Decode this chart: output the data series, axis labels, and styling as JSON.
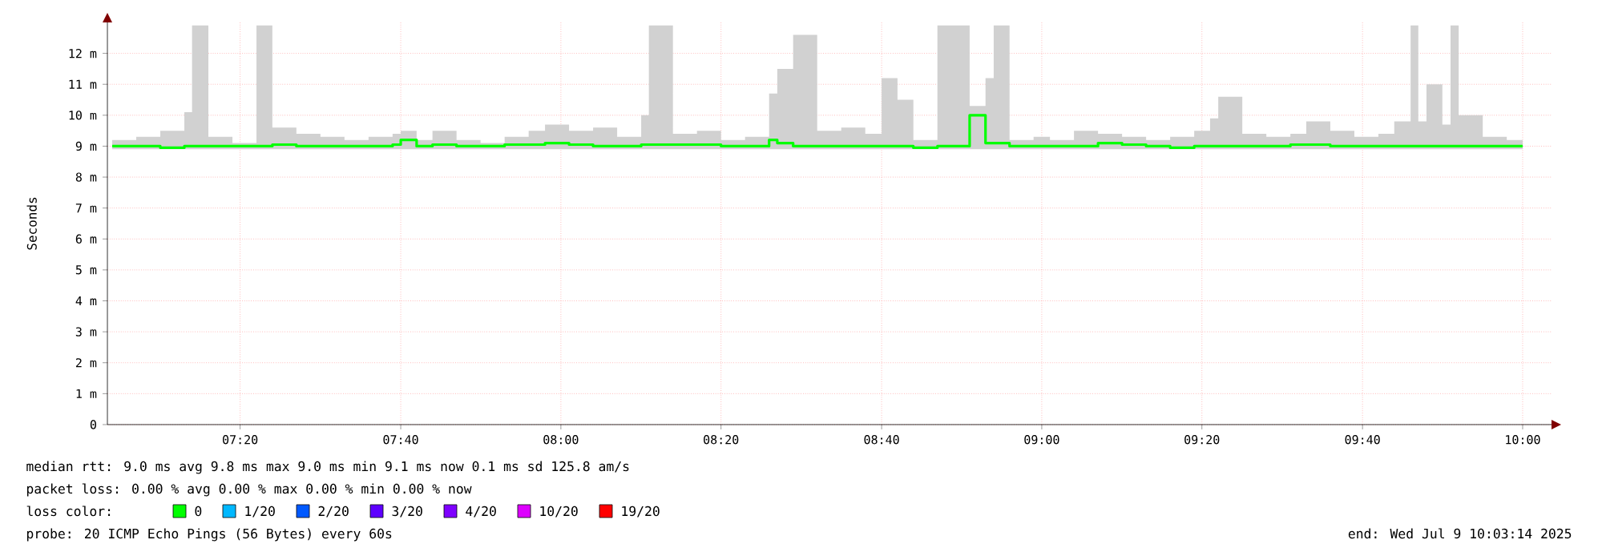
{
  "chart_data": {
    "type": "step",
    "ylabel": "Seconds",
    "xlim": [
      7.057,
      10.06
    ],
    "ylim": [
      0,
      13
    ],
    "xticks": [
      {
        "value": 7.333,
        "label": "07:20"
      },
      {
        "value": 7.667,
        "label": "07:40"
      },
      {
        "value": 8.0,
        "label": "08:00"
      },
      {
        "value": 8.333,
        "label": "08:20"
      },
      {
        "value": 8.667,
        "label": "08:40"
      },
      {
        "value": 9.0,
        "label": "09:00"
      },
      {
        "value": 9.333,
        "label": "09:20"
      },
      {
        "value": 9.667,
        "label": "09:40"
      },
      {
        "value": 10.0,
        "label": "10:00"
      }
    ],
    "yticks": [
      0,
      {
        "value": 1,
        "label": "1 m"
      },
      {
        "value": 2,
        "label": "2 m"
      },
      {
        "value": 3,
        "label": "3 m"
      },
      {
        "value": 4,
        "label": "4 m"
      },
      {
        "value": 5,
        "label": "5 m"
      },
      {
        "value": 6,
        "label": "6 m"
      },
      {
        "value": 7,
        "label": "7 m"
      },
      {
        "value": 8,
        "label": "8 m"
      },
      {
        "value": 9,
        "label": "9 m"
      },
      {
        "value": 10,
        "label": "10 m"
      },
      {
        "value": 11,
        "label": "11 m"
      },
      {
        "value": 12,
        "label": "12 m"
      }
    ],
    "grid": true,
    "legend": "bottom",
    "legend_title": "loss color:",
    "x": [
      7.067,
      7.117,
      7.167,
      7.217,
      7.233,
      7.267,
      7.317,
      7.367,
      7.4,
      7.45,
      7.5,
      7.55,
      7.6,
      7.65,
      7.667,
      7.7,
      7.733,
      7.783,
      7.833,
      7.883,
      7.933,
      7.967,
      8.017,
      8.067,
      8.117,
      8.167,
      8.183,
      8.233,
      8.283,
      8.333,
      8.383,
      8.433,
      8.45,
      8.483,
      8.533,
      8.583,
      8.633,
      8.667,
      8.7,
      8.733,
      8.783,
      8.817,
      8.85,
      8.883,
      8.9,
      8.933,
      8.983,
      9.017,
      9.067,
      9.117,
      9.167,
      9.217,
      9.267,
      9.317,
      9.35,
      9.367,
      9.417,
      9.467,
      9.517,
      9.55,
      9.6,
      9.65,
      9.7,
      9.733,
      9.767,
      9.783,
      9.8,
      9.833,
      9.85,
      9.867,
      9.917,
      9.967,
      10.0
    ],
    "series": [
      {
        "name": "0",
        "color": "#00ff00",
        "values": [
          9.0,
          9.0,
          8.95,
          9.0,
          9.0,
          9.0,
          9.0,
          9.0,
          9.05,
          9.0,
          9.0,
          9.0,
          9.0,
          9.05,
          9.2,
          9.0,
          9.05,
          9.0,
          9.0,
          9.05,
          9.05,
          9.1,
          9.05,
          9.0,
          9.0,
          9.05,
          9.05,
          9.05,
          9.05,
          9.0,
          9.0,
          9.2,
          9.1,
          9.0,
          9.0,
          9.0,
          9.0,
          9.0,
          9.0,
          8.95,
          9.0,
          9.0,
          10.0,
          9.1,
          9.1,
          9.0,
          9.0,
          9.0,
          9.0,
          9.1,
          9.05,
          9.0,
          8.95,
          9.0,
          9.0,
          9.0,
          9.0,
          9.0,
          9.05,
          9.05,
          9.0,
          9.0,
          9.0,
          9.0,
          9.0,
          9.0,
          9.0,
          9.0,
          9.0,
          9.0,
          9.0,
          9.0,
          9.0
        ],
        "lower": [
          8.9,
          8.9,
          8.9,
          8.9,
          8.9,
          8.9,
          8.9,
          8.9,
          8.9,
          8.9,
          8.9,
          8.9,
          8.9,
          8.9,
          8.9,
          8.9,
          8.9,
          8.9,
          8.9,
          8.9,
          8.9,
          8.9,
          8.9,
          8.9,
          8.9,
          8.9,
          8.9,
          8.9,
          8.9,
          8.9,
          8.9,
          8.9,
          8.9,
          8.9,
          8.9,
          8.9,
          8.9,
          8.9,
          8.9,
          8.9,
          8.9,
          8.9,
          8.9,
          8.9,
          8.9,
          8.9,
          8.9,
          8.9,
          8.9,
          8.9,
          8.9,
          8.9,
          8.9,
          8.9,
          8.9,
          8.9,
          8.9,
          8.9,
          8.9,
          8.9,
          8.9,
          8.9,
          8.9,
          8.9,
          8.9,
          8.9,
          8.9,
          8.9,
          8.9,
          8.9,
          8.9,
          8.9,
          8.9
        ],
        "upper": [
          9.2,
          9.3,
          9.5,
          10.1,
          12.9,
          9.3,
          9.1,
          12.9,
          9.6,
          9.4,
          9.3,
          9.2,
          9.3,
          9.4,
          9.5,
          9.2,
          9.5,
          9.2,
          9.1,
          9.3,
          9.5,
          9.7,
          9.5,
          9.6,
          9.3,
          10.0,
          12.9,
          9.4,
          9.5,
          9.2,
          9.3,
          10.7,
          11.5,
          12.6,
          9.5,
          9.6,
          9.4,
          11.2,
          10.5,
          9.2,
          12.9,
          12.9,
          10.3,
          11.2,
          12.9,
          9.2,
          9.3,
          9.2,
          9.5,
          9.4,
          9.3,
          9.2,
          9.3,
          9.5,
          9.9,
          10.6,
          9.4,
          9.3,
          9.4,
          9.8,
          9.5,
          9.3,
          9.4,
          9.8,
          12.9,
          9.8,
          11.0,
          9.7,
          12.9,
          10.0,
          9.3,
          9.2,
          10.0
        ]
      },
      {
        "name": "1/20",
        "color": "#00b8ff",
        "values": [
          null,
          null,
          null,
          null,
          null,
          null,
          null,
          null,
          null,
          null,
          null,
          null,
          null,
          null,
          null,
          null,
          null,
          null,
          null,
          null,
          null,
          null,
          null,
          null,
          null,
          null,
          null,
          null,
          null,
          null,
          null,
          null,
          null,
          null,
          null,
          null,
          null,
          null,
          null,
          null,
          null,
          null,
          null,
          null,
          null,
          null,
          null,
          null,
          null,
          null,
          null,
          null,
          null,
          null,
          null,
          null,
          null,
          null,
          null,
          null,
          null,
          null,
          null,
          null,
          null,
          null,
          null,
          null,
          null,
          null,
          null,
          null,
          null
        ]
      },
      {
        "name": "2/20",
        "color": "#0059ff",
        "values": [
          null,
          null,
          null,
          null,
          null,
          null,
          null,
          null,
          null,
          null,
          null,
          null,
          null,
          null,
          null,
          null,
          null,
          null,
          null,
          null,
          null,
          null,
          null,
          null,
          null,
          null,
          null,
          null,
          null,
          null,
          null,
          null,
          null,
          null,
          null,
          null,
          null,
          null,
          null,
          null,
          null,
          null,
          null,
          null,
          null,
          null,
          null,
          null,
          null,
          null,
          null,
          null,
          null,
          null,
          null,
          null,
          null,
          null,
          null,
          null,
          null,
          null,
          null,
          null,
          null,
          null,
          null,
          null,
          null,
          null,
          null,
          null,
          null
        ]
      },
      {
        "name": "3/20",
        "color": "#5e00ff",
        "values": [
          null,
          null,
          null,
          null,
          null,
          null,
          null,
          null,
          null,
          null,
          null,
          null,
          null,
          null,
          null,
          null,
          null,
          null,
          null,
          null,
          null,
          null,
          null,
          null,
          null,
          null,
          null,
          null,
          null,
          null,
          null,
          null,
          null,
          null,
          null,
          null,
          null,
          null,
          null,
          null,
          null,
          null,
          null,
          null,
          null,
          null,
          null,
          null,
          null,
          null,
          null,
          null,
          null,
          null,
          null,
          null,
          null,
          null,
          null,
          null,
          null,
          null,
          null,
          null,
          null,
          null,
          null,
          null,
          null,
          null,
          null,
          null,
          null
        ]
      },
      {
        "name": "4/20",
        "color": "#7e00ff",
        "values": [
          null,
          null,
          null,
          null,
          null,
          null,
          null,
          null,
          null,
          null,
          null,
          null,
          null,
          null,
          null,
          null,
          null,
          null,
          null,
          null,
          null,
          null,
          null,
          null,
          null,
          null,
          null,
          null,
          null,
          null,
          null,
          null,
          null,
          null,
          null,
          null,
          null,
          null,
          null,
          null,
          null,
          null,
          null,
          null,
          null,
          null,
          null,
          null,
          null,
          null,
          null,
          null,
          null,
          null,
          null,
          null,
          null,
          null,
          null,
          null,
          null,
          null,
          null,
          null,
          null,
          null,
          null,
          null,
          null,
          null,
          null,
          null,
          null
        ]
      },
      {
        "name": "10/20",
        "color": "#dd00ff",
        "values": [
          null,
          null,
          null,
          null,
          null,
          null,
          null,
          null,
          null,
          null,
          null,
          null,
          null,
          null,
          null,
          null,
          null,
          null,
          null,
          null,
          null,
          null,
          null,
          null,
          null,
          null,
          null,
          null,
          null,
          null,
          null,
          null,
          null,
          null,
          null,
          null,
          null,
          null,
          null,
          null,
          null,
          null,
          null,
          null,
          null,
          null,
          null,
          null,
          null,
          null,
          null,
          null,
          null,
          null,
          null,
          null,
          null,
          null,
          null,
          null,
          null,
          null,
          null,
          null,
          null,
          null,
          null,
          null,
          null,
          null,
          null,
          null,
          null
        ]
      },
      {
        "name": "19/20",
        "color": "#ff0000",
        "values": [
          null,
          null,
          null,
          null,
          null,
          null,
          null,
          null,
          null,
          null,
          null,
          null,
          null,
          null,
          null,
          null,
          null,
          null,
          null,
          null,
          null,
          null,
          null,
          null,
          null,
          null,
          null,
          null,
          null,
          null,
          null,
          null,
          null,
          null,
          null,
          null,
          null,
          null,
          null,
          null,
          null,
          null,
          null,
          null,
          null,
          null,
          null,
          null,
          null,
          null,
          null,
          null,
          null,
          null,
          null,
          null,
          null,
          null,
          null,
          null,
          null,
          null,
          null,
          null,
          null,
          null,
          null,
          null,
          null,
          null,
          null,
          null,
          null
        ]
      }
    ],
    "annotations": [
      "median rtt:  9.0 ms avg  9.8 ms max  9.0 ms min  9.1 ms now  0.1 ms sd  125.8   am/s",
      "packet loss: 0.00 % avg  0.00 % max  0.00 % min  0.00 % now",
      "probe:       20 ICMP Echo Pings (56 Bytes) every 60s",
      "end: Wed Jul  9 10:03:14 2025"
    ]
  }
}
